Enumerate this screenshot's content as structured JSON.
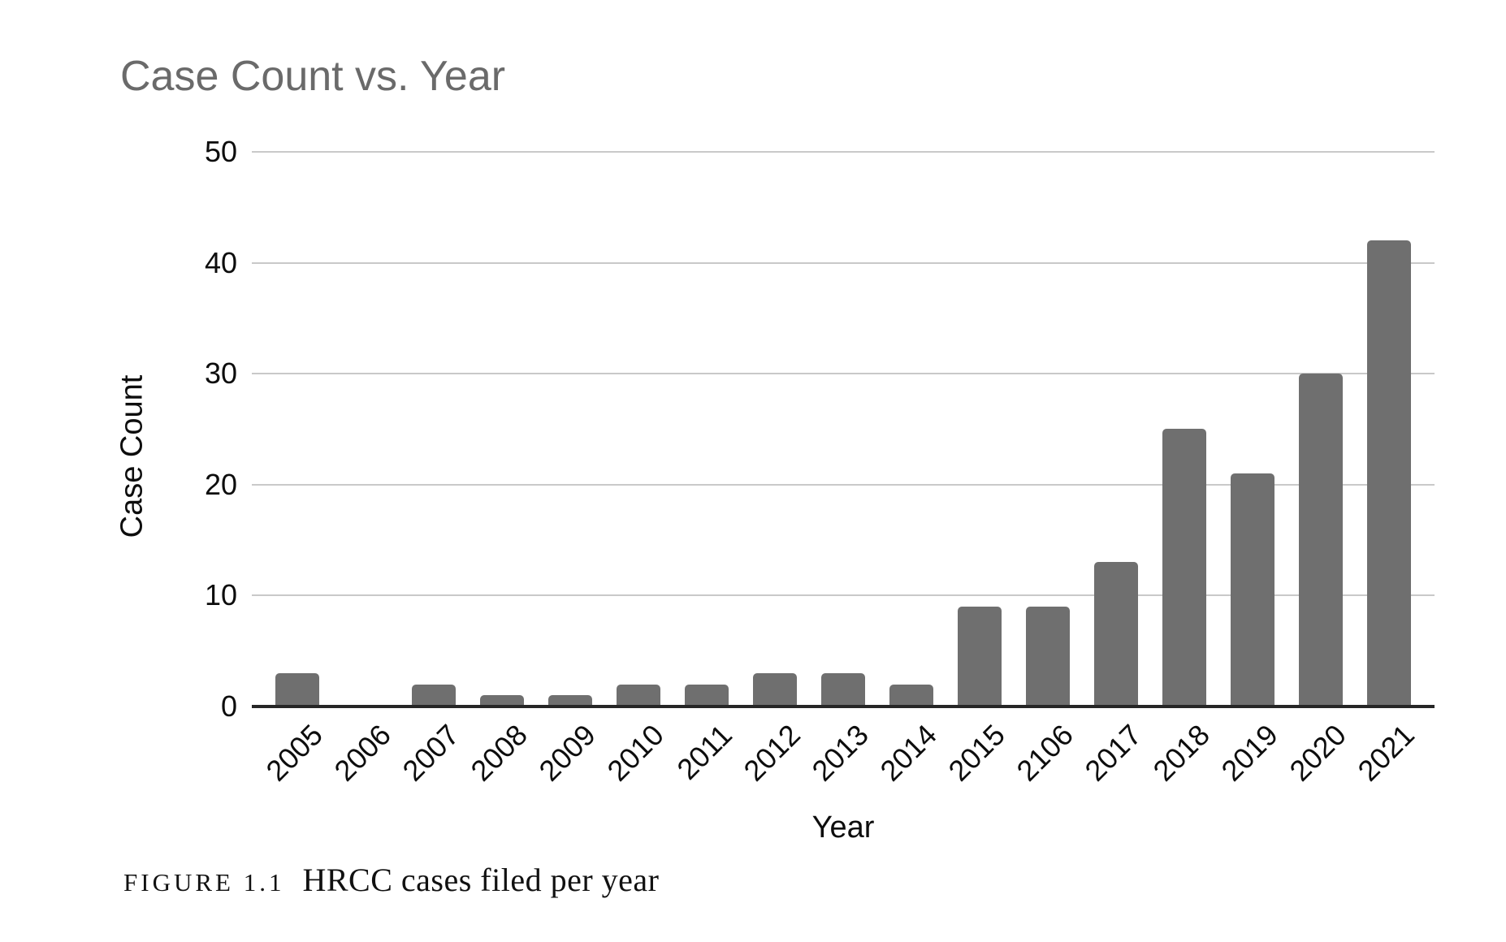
{
  "figure": {
    "caption_label": "FIGURE 1.1",
    "caption_text": "HRCC cases filed per year"
  },
  "chart_data": {
    "type": "bar",
    "title": "Case Count vs. Year",
    "xlabel": "Year",
    "ylabel": "Case Count",
    "categories": [
      "2005",
      "2006",
      "2007",
      "2008",
      "2009",
      "2010",
      "2011",
      "2012",
      "2013",
      "2014",
      "2015",
      "2106",
      "2017",
      "2018",
      "2019",
      "2020",
      "2021"
    ],
    "values": [
      3,
      0,
      2,
      1,
      1,
      2,
      2,
      3,
      3,
      2,
      9,
      9,
      13,
      25,
      21,
      30,
      42
    ],
    "ylim": [
      0,
      50
    ],
    "yticks": [
      0,
      10,
      20,
      30,
      40,
      50
    ],
    "grid": true,
    "legend": "none",
    "bar_color": "#6f6f6f",
    "title_color": "#6a6a6a",
    "gridline_color": "#c9c9c9",
    "axis_line_color": "#262626"
  }
}
